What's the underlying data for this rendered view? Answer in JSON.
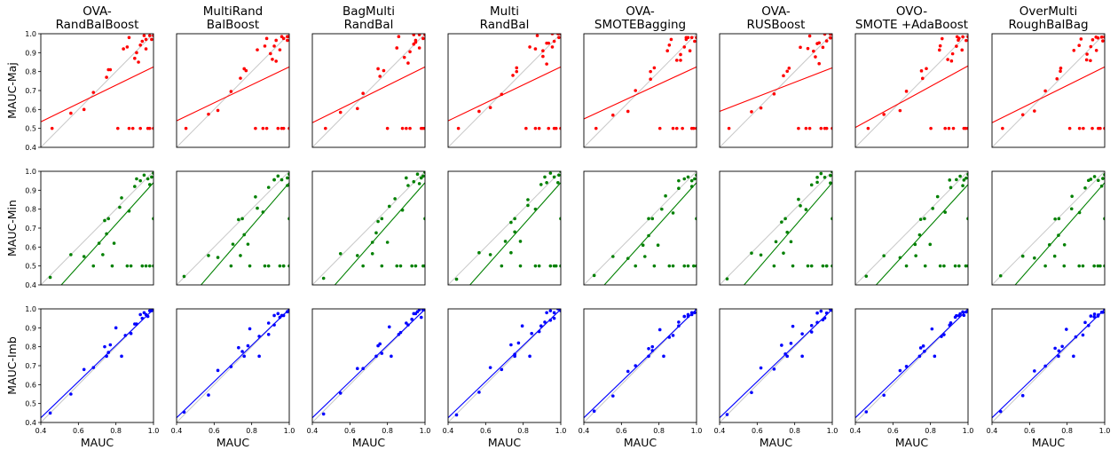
{
  "chart_data": {
    "type": "scatter",
    "columns": [
      [
        "OVA-",
        "RandBalBoost"
      ],
      [
        "MultiRand",
        "BalBoost"
      ],
      [
        "BagMulti",
        "RandBal"
      ],
      [
        "Multi",
        "RandBal"
      ],
      [
        "OVA-",
        "SMOTEBagging"
      ],
      [
        "OVA-",
        "RUSBoost"
      ],
      [
        "OVO-",
        "SMOTE +AdaBoost"
      ],
      [
        "OverMulti",
        "RoughBalBag"
      ]
    ],
    "rows": [
      {
        "ylabel": "MAUC-Maj",
        "color": "#ff0000"
      },
      {
        "ylabel": "MAUC-Min",
        "color": "#008000"
      },
      {
        "ylabel": "MAUC-Imb",
        "color": "#0000ff"
      }
    ],
    "xlabel": "MAUC",
    "xlim": [
      0.4,
      1.0
    ],
    "ylim": [
      0.4,
      1.0
    ],
    "xticks": [
      "0.4",
      "0.6",
      "0.8",
      "1.0"
    ],
    "yticks": [
      "0.4",
      "0.5",
      "0.6",
      "0.7",
      "0.8",
      "0.9",
      "1.0"
    ],
    "diagonal_color": "#c8c8c8",
    "regression_lines": [
      [
        [
          0.4,
          0.535,
          1.0,
          0.825
        ],
        [
          0.4,
          0.28,
          1.0,
          0.94
        ],
        [
          0.4,
          0.425,
          1.0,
          0.998
        ]
      ],
      [
        [
          0.4,
          0.54,
          1.0,
          0.825
        ],
        [
          0.4,
          0.25,
          1.0,
          0.94
        ],
        [
          0.4,
          0.425,
          1.0,
          0.998
        ]
      ],
      [
        [
          0.4,
          0.53,
          1.0,
          0.825
        ],
        [
          0.4,
          0.265,
          1.0,
          0.94
        ],
        [
          0.4,
          0.425,
          1.0,
          0.998
        ]
      ],
      [
        [
          0.4,
          0.54,
          1.0,
          0.825
        ],
        [
          0.4,
          0.27,
          1.0,
          0.94
        ],
        [
          0.4,
          0.425,
          1.0,
          0.998
        ]
      ],
      [
        [
          0.4,
          0.55,
          1.0,
          0.825
        ],
        [
          0.4,
          0.28,
          1.0,
          0.94
        ],
        [
          0.4,
          0.425,
          1.0,
          0.998
        ]
      ],
      [
        [
          0.4,
          0.59,
          1.0,
          0.82
        ],
        [
          0.4,
          0.25,
          1.0,
          0.94
        ],
        [
          0.4,
          0.425,
          1.0,
          0.998
        ]
      ],
      [
        [
          0.4,
          0.505,
          1.0,
          0.83
        ],
        [
          0.4,
          0.28,
          1.0,
          0.93
        ],
        [
          0.4,
          0.425,
          1.0,
          0.998
        ]
      ],
      [
        [
          0.4,
          0.53,
          1.0,
          0.825
        ],
        [
          0.4,
          0.26,
          1.0,
          0.94
        ],
        [
          0.4,
          0.425,
          1.0,
          0.998
        ]
      ]
    ],
    "points": {
      "maj": [
        [
          0.46,
          0.5
        ],
        [
          0.56,
          0.58
        ],
        [
          0.63,
          0.6
        ],
        [
          0.68,
          0.69
        ],
        [
          0.75,
          0.77
        ],
        [
          0.76,
          0.81
        ],
        [
          0.77,
          0.81
        ],
        [
          0.81,
          0.5
        ],
        [
          0.84,
          0.92
        ],
        [
          0.86,
          0.93
        ],
        [
          0.87,
          0.5
        ],
        [
          0.87,
          0.98
        ],
        [
          0.89,
          0.5
        ],
        [
          0.9,
          0.87
        ],
        [
          0.91,
          0.9
        ],
        [
          0.92,
          0.85
        ],
        [
          0.93,
          0.94
        ],
        [
          0.93,
          0.5
        ],
        [
          0.94,
          0.96
        ],
        [
          0.95,
          0.99
        ],
        [
          0.96,
          0.92
        ],
        [
          0.96,
          0.97
        ],
        [
          0.97,
          0.5
        ],
        [
          0.98,
          0.99
        ],
        [
          0.98,
          0.5
        ],
        [
          0.99,
          0.97
        ],
        [
          1.0,
          0.99
        ],
        [
          1.0,
          0.5
        ]
      ],
      "min": [
        [
          0.45,
          0.44
        ],
        [
          0.56,
          0.56
        ],
        [
          0.63,
          0.55
        ],
        [
          0.68,
          0.5
        ],
        [
          0.71,
          0.62
        ],
        [
          0.73,
          0.56
        ],
        [
          0.74,
          0.74
        ],
        [
          0.75,
          0.67
        ],
        [
          0.76,
          0.75
        ],
        [
          0.78,
          0.5
        ],
        [
          0.79,
          0.62
        ],
        [
          0.82,
          0.81
        ],
        [
          0.83,
          0.86
        ],
        [
          0.86,
          0.5
        ],
        [
          0.87,
          0.79
        ],
        [
          0.88,
          0.5
        ],
        [
          0.9,
          0.92
        ],
        [
          0.91,
          0.96
        ],
        [
          0.93,
          0.95
        ],
        [
          0.94,
          0.5
        ],
        [
          0.95,
          0.98
        ],
        [
          0.96,
          0.5
        ],
        [
          0.97,
          0.96
        ],
        [
          0.98,
          0.93
        ],
        [
          0.98,
          0.5
        ],
        [
          0.99,
          0.97
        ],
        [
          1.0,
          0.99
        ],
        [
          1.0,
          0.75
        ],
        [
          1.0,
          0.5
        ]
      ],
      "imb": [
        [
          0.45,
          0.45
        ],
        [
          0.56,
          0.55
        ],
        [
          0.63,
          0.68
        ],
        [
          0.68,
          0.69
        ],
        [
          0.74,
          0.8
        ],
        [
          0.75,
          0.75
        ],
        [
          0.76,
          0.77
        ],
        [
          0.77,
          0.81
        ],
        [
          0.8,
          0.9
        ],
        [
          0.83,
          0.75
        ],
        [
          0.85,
          0.86
        ],
        [
          0.88,
          0.87
        ],
        [
          0.9,
          0.92
        ],
        [
          0.91,
          0.92
        ],
        [
          0.93,
          0.97
        ],
        [
          0.94,
          0.95
        ],
        [
          0.95,
          0.98
        ],
        [
          0.96,
          0.97
        ],
        [
          0.97,
          0.96
        ],
        [
          0.98,
          0.99
        ],
        [
          0.99,
          0.99
        ],
        [
          1.0,
          1.0
        ]
      ]
    }
  }
}
